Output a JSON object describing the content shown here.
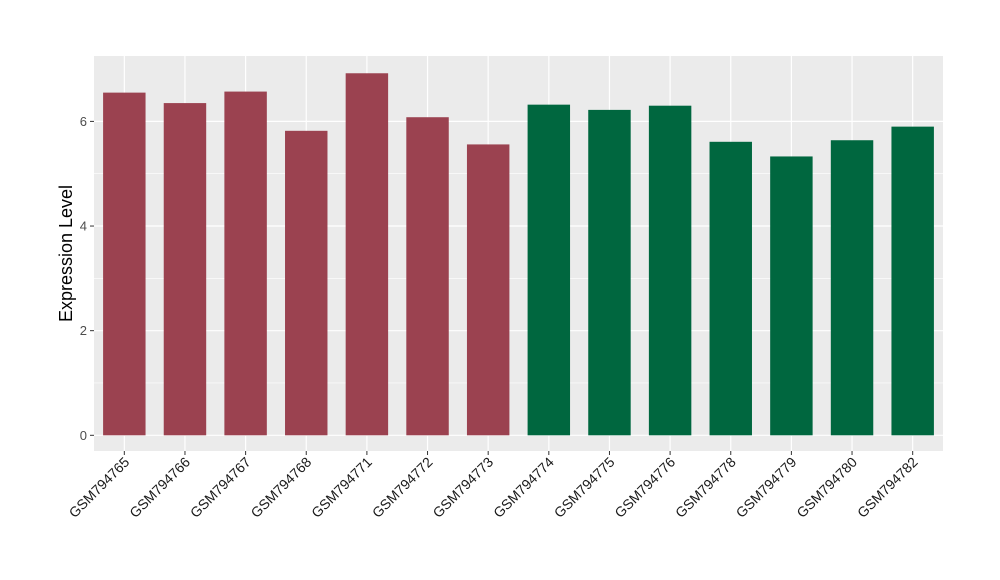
{
  "chart_data": {
    "type": "bar",
    "title": "",
    "xlabel": "",
    "ylabel": "Expression Level",
    "ylim": [
      -0.3,
      7.25
    ],
    "yticks": [
      0,
      2,
      4,
      6
    ],
    "grid": true,
    "categories": [
      "GSM794765",
      "GSM794766",
      "GSM794767",
      "GSM794768",
      "GSM794771",
      "GSM794772",
      "GSM794773",
      "GSM794774",
      "GSM794775",
      "GSM794776",
      "GSM794778",
      "GSM794779",
      "GSM794780",
      "GSM794782"
    ],
    "values": [
      6.55,
      6.35,
      6.57,
      5.82,
      6.92,
      6.08,
      5.56,
      6.32,
      6.22,
      6.3,
      5.61,
      5.33,
      5.64,
      5.9
    ],
    "bar_colors": [
      "#9b4250",
      "#9b4250",
      "#9b4250",
      "#9b4250",
      "#9b4250",
      "#9b4250",
      "#9b4250",
      "#00673f",
      "#00673f",
      "#00673f",
      "#00673f",
      "#00673f",
      "#00673f",
      "#00673f"
    ],
    "panel_background": "#ebebeb",
    "gridline_color": "#ffffff"
  }
}
